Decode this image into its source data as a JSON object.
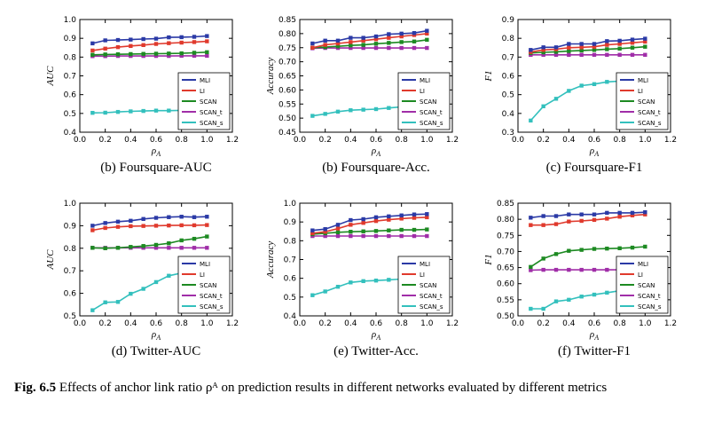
{
  "caption": {
    "label": "Fig. 6.5",
    "text": "Effects of anchor link ratio ρᴬ on prediction results in different networks evaluated by different metrics"
  },
  "colors": {
    "MLI": "#2b3aa6",
    "LI": "#e03a2d",
    "SCAN": "#1d8a22",
    "SCAN_t": "#a02ea8",
    "SCAN_s": "#33c0bd"
  },
  "chart_data": [
    {
      "type": "line",
      "title": "(b) Foursquare-AUC",
      "xlabel": "ρA",
      "ylabel": "AUC",
      "xlim": [
        0,
        1.2
      ],
      "ylim": [
        0.4,
        1.0
      ],
      "xticks": [
        "0.0",
        "0.2",
        "0.4",
        "0.6",
        "0.8",
        "1.0",
        "1.2"
      ],
      "yticks": [
        "0.4",
        "0.5",
        "0.6",
        "0.7",
        "0.8",
        "0.9",
        "1.0"
      ],
      "legend_position": "bottom-right",
      "x": [
        0.1,
        0.2,
        0.3,
        0.4,
        0.5,
        0.6,
        0.7,
        0.8,
        0.9,
        1.0
      ],
      "series": [
        {
          "name": "MLI",
          "values": [
            0.873,
            0.889,
            0.891,
            0.893,
            0.896,
            0.898,
            0.905,
            0.906,
            0.908,
            0.912
          ]
        },
        {
          "name": "LI",
          "values": [
            0.835,
            0.845,
            0.853,
            0.859,
            0.864,
            0.87,
            0.874,
            0.877,
            0.88,
            0.884
          ]
        },
        {
          "name": "SCAN",
          "values": [
            0.812,
            0.814,
            0.815,
            0.816,
            0.817,
            0.818,
            0.819,
            0.82,
            0.823,
            0.826
          ]
        },
        {
          "name": "SCAN_t",
          "values": [
            0.805,
            0.805,
            0.806,
            0.806,
            0.806,
            0.806,
            0.806,
            0.807,
            0.807,
            0.807
          ]
        },
        {
          "name": "SCAN_s",
          "values": [
            0.503,
            0.504,
            0.508,
            0.511,
            0.513,
            0.515,
            0.515,
            0.516,
            0.518,
            0.519
          ]
        }
      ]
    },
    {
      "type": "line",
      "title": "(b) Foursquare-Acc.",
      "xlabel": "ρA",
      "ylabel": "Accuracy",
      "xlim": [
        0,
        1.2
      ],
      "ylim": [
        0.45,
        0.85
      ],
      "xticks": [
        "0.0",
        "0.2",
        "0.4",
        "0.6",
        "0.8",
        "1.0",
        "1.2"
      ],
      "yticks": [
        "0.45",
        "0.50",
        "0.55",
        "0.60",
        "0.65",
        "0.70",
        "0.75",
        "0.80",
        "0.85"
      ],
      "legend_position": "bottom-right",
      "x": [
        0.1,
        0.2,
        0.3,
        0.4,
        0.5,
        0.6,
        0.7,
        0.8,
        0.9,
        1.0
      ],
      "series": [
        {
          "name": "MLI",
          "values": [
            0.765,
            0.775,
            0.775,
            0.785,
            0.785,
            0.79,
            0.798,
            0.8,
            0.802,
            0.81
          ]
        },
        {
          "name": "LI",
          "values": [
            0.75,
            0.76,
            0.765,
            0.77,
            0.775,
            0.78,
            0.785,
            0.79,
            0.795,
            0.8
          ]
        },
        {
          "name": "SCAN",
          "values": [
            0.75,
            0.752,
            0.755,
            0.758,
            0.76,
            0.764,
            0.767,
            0.77,
            0.772,
            0.778
          ]
        },
        {
          "name": "SCAN_t",
          "values": [
            0.748,
            0.749,
            0.749,
            0.749,
            0.749,
            0.749,
            0.749,
            0.749,
            0.749,
            0.749
          ]
        },
        {
          "name": "SCAN_s",
          "values": [
            0.508,
            0.515,
            0.523,
            0.528,
            0.53,
            0.532,
            0.536,
            0.54,
            0.542,
            0.545
          ]
        }
      ]
    },
    {
      "type": "line",
      "title": "(c) Foursquare-F1",
      "xlabel": "ρA",
      "ylabel": "F1",
      "xlim": [
        0,
        1.2
      ],
      "ylim": [
        0.3,
        0.9
      ],
      "xticks": [
        "0.0",
        "0.2",
        "0.4",
        "0.6",
        "0.8",
        "1.0",
        "1.2"
      ],
      "yticks": [
        "0.3",
        "0.4",
        "0.5",
        "0.6",
        "0.7",
        "0.8",
        "0.9"
      ],
      "legend_position": "bottom-right",
      "x": [
        0.1,
        0.2,
        0.3,
        0.4,
        0.5,
        0.6,
        0.7,
        0.8,
        0.9,
        1.0
      ],
      "series": [
        {
          "name": "MLI",
          "values": [
            0.738,
            0.752,
            0.752,
            0.77,
            0.77,
            0.77,
            0.785,
            0.787,
            0.793,
            0.798
          ]
        },
        {
          "name": "LI",
          "values": [
            0.727,
            0.738,
            0.742,
            0.75,
            0.752,
            0.755,
            0.765,
            0.77,
            0.776,
            0.782
          ]
        },
        {
          "name": "SCAN",
          "values": [
            0.722,
            0.725,
            0.728,
            0.732,
            0.735,
            0.738,
            0.742,
            0.745,
            0.75,
            0.755
          ]
        },
        {
          "name": "SCAN_t",
          "values": [
            0.712,
            0.712,
            0.712,
            0.712,
            0.712,
            0.712,
            0.712,
            0.712,
            0.712,
            0.712
          ]
        },
        {
          "name": "SCAN_s",
          "values": [
            0.362,
            0.438,
            0.478,
            0.52,
            0.548,
            0.556,
            0.568,
            0.572,
            0.576,
            0.58
          ]
        }
      ]
    },
    {
      "type": "line",
      "title": "(d) Twitter-AUC",
      "xlabel": "ρA",
      "ylabel": "AUC",
      "xlim": [
        0,
        1.2
      ],
      "ylim": [
        0.5,
        1.0
      ],
      "xticks": [
        "0.0",
        "0.2",
        "0.4",
        "0.6",
        "0.8",
        "1.0",
        "1.2"
      ],
      "yticks": [
        "0.5",
        "0.6",
        "0.7",
        "0.8",
        "0.9",
        "1.0"
      ],
      "legend_position": "bottom-right",
      "x": [
        0.1,
        0.2,
        0.3,
        0.4,
        0.5,
        0.6,
        0.7,
        0.8,
        0.9,
        1.0
      ],
      "series": [
        {
          "name": "MLI",
          "values": [
            0.9,
            0.912,
            0.918,
            0.922,
            0.93,
            0.935,
            0.938,
            0.94,
            0.938,
            0.94
          ]
        },
        {
          "name": "LI",
          "values": [
            0.88,
            0.89,
            0.895,
            0.898,
            0.899,
            0.9,
            0.901,
            0.902,
            0.902,
            0.903
          ]
        },
        {
          "name": "SCAN",
          "values": [
            0.802,
            0.8,
            0.802,
            0.806,
            0.81,
            0.815,
            0.822,
            0.835,
            0.842,
            0.852
          ]
        },
        {
          "name": "SCAN_t",
          "values": [
            0.802,
            0.802,
            0.802,
            0.802,
            0.802,
            0.802,
            0.802,
            0.802,
            0.802,
            0.802
          ]
        },
        {
          "name": "SCAN_s",
          "values": [
            0.525,
            0.56,
            0.562,
            0.598,
            0.62,
            0.65,
            0.678,
            0.69,
            0.7,
            0.705
          ]
        }
      ]
    },
    {
      "type": "line",
      "title": "(e) Twitter-Acc.",
      "xlabel": "ρA",
      "ylabel": "Accuracy",
      "xlim": [
        0,
        1.2
      ],
      "ylim": [
        0.4,
        1.0
      ],
      "xticks": [
        "0.0",
        "0.2",
        "0.4",
        "0.6",
        "0.8",
        "1.0",
        "1.2"
      ],
      "yticks": [
        "0.4",
        "0.5",
        "0.6",
        "0.7",
        "0.8",
        "0.9",
        "1.0"
      ],
      "legend_position": "bottom-right",
      "x": [
        0.1,
        0.2,
        0.3,
        0.4,
        0.5,
        0.6,
        0.7,
        0.8,
        0.9,
        1.0
      ],
      "series": [
        {
          "name": "MLI",
          "values": [
            0.855,
            0.862,
            0.885,
            0.91,
            0.915,
            0.925,
            0.93,
            0.935,
            0.94,
            0.942
          ]
        },
        {
          "name": "LI",
          "values": [
            0.84,
            0.848,
            0.865,
            0.885,
            0.895,
            0.905,
            0.912,
            0.918,
            0.922,
            0.925
          ]
        },
        {
          "name": "SCAN",
          "values": [
            0.835,
            0.84,
            0.845,
            0.848,
            0.85,
            0.852,
            0.855,
            0.858,
            0.858,
            0.86
          ]
        },
        {
          "name": "SCAN_t",
          "values": [
            0.825,
            0.825,
            0.825,
            0.825,
            0.825,
            0.825,
            0.825,
            0.825,
            0.825,
            0.825
          ]
        },
        {
          "name": "SCAN_s",
          "values": [
            0.51,
            0.53,
            0.555,
            0.578,
            0.585,
            0.588,
            0.592,
            0.596,
            0.6,
            0.605
          ]
        }
      ]
    },
    {
      "type": "line",
      "title": "(f) Twitter-F1",
      "xlabel": "ρA",
      "ylabel": "F1",
      "xlim": [
        0,
        1.2
      ],
      "ylim": [
        0.5,
        0.85
      ],
      "xticks": [
        "0.0",
        "0.2",
        "0.4",
        "0.6",
        "0.8",
        "1.0",
        "1.2"
      ],
      "yticks": [
        "0.50",
        "0.55",
        "0.60",
        "0.65",
        "0.70",
        "0.75",
        "0.80",
        "0.85"
      ],
      "legend_position": "bottom-right",
      "x": [
        0.1,
        0.2,
        0.3,
        0.4,
        0.5,
        0.6,
        0.7,
        0.8,
        0.9,
        1.0
      ],
      "series": [
        {
          "name": "MLI",
          "values": [
            0.805,
            0.81,
            0.81,
            0.815,
            0.815,
            0.815,
            0.82,
            0.82,
            0.82,
            0.822
          ]
        },
        {
          "name": "LI",
          "values": [
            0.782,
            0.782,
            0.785,
            0.793,
            0.795,
            0.798,
            0.802,
            0.808,
            0.812,
            0.815
          ]
        },
        {
          "name": "SCAN",
          "values": [
            0.652,
            0.678,
            0.692,
            0.702,
            0.705,
            0.708,
            0.709,
            0.71,
            0.712,
            0.715
          ]
        },
        {
          "name": "SCAN_t",
          "values": [
            0.642,
            0.643,
            0.643,
            0.643,
            0.643,
            0.643,
            0.643,
            0.643,
            0.643,
            0.643
          ]
        },
        {
          "name": "SCAN_s",
          "values": [
            0.522,
            0.522,
            0.545,
            0.55,
            0.56,
            0.566,
            0.572,
            0.578,
            0.585,
            0.59
          ]
        }
      ]
    }
  ]
}
